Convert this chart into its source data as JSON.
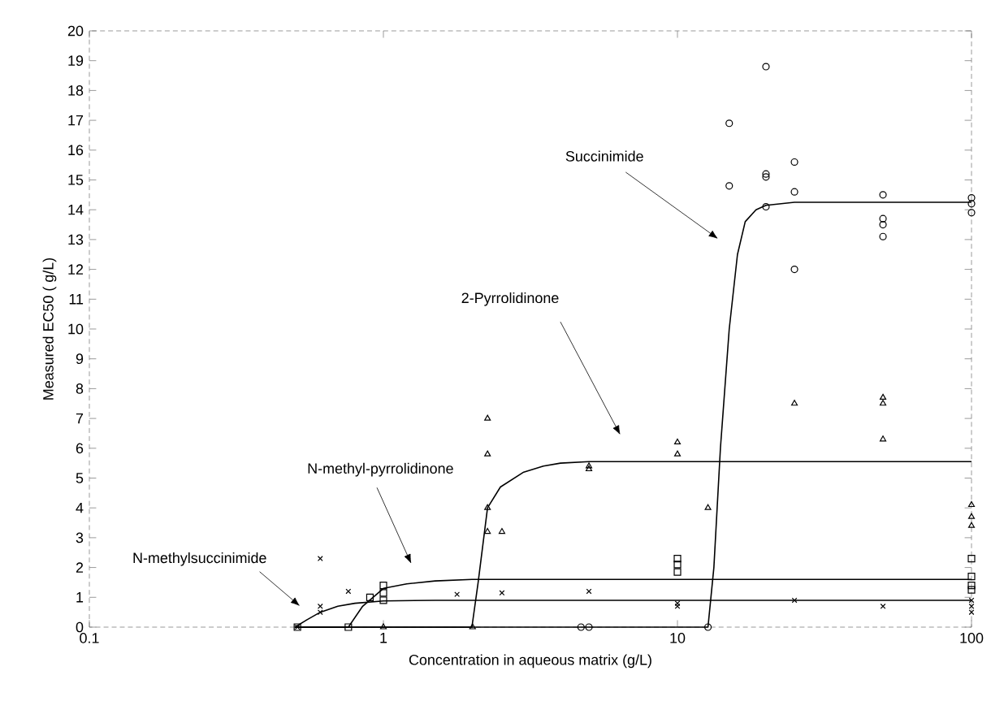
{
  "chart_data": {
    "type": "scatter",
    "xlabel": "Concentration in aqueous matrix (g/L)",
    "ylabel": "Measured EC50 ( g/L)",
    "log": "x",
    "grid": false,
    "xlim": [
      0.1,
      100
    ],
    "xticks": [
      0.1,
      1,
      10,
      100
    ],
    "ylim": [
      0,
      20
    ],
    "yticks": [
      0,
      1,
      2,
      3,
      4,
      5,
      6,
      7,
      8,
      9,
      10,
      11,
      12,
      13,
      14,
      15,
      16,
      17,
      18,
      19,
      20
    ],
    "series": [
      {
        "marker": "circle",
        "color": "#000000",
        "x": [
          4.7,
          5.0,
          12.7,
          15,
          15,
          20,
          20,
          20,
          20,
          25,
          25,
          25,
          50,
          50,
          50,
          50,
          100,
          100,
          100
        ],
        "values": [
          0,
          0,
          0,
          16.9,
          14.8,
          18.8,
          15.2,
          15.1,
          14.1,
          15.6,
          14.6,
          12.0,
          14.5,
          13.7,
          13.5,
          13.1,
          14.4,
          14.2,
          13.9
        ]
      },
      {
        "marker": "triangle",
        "color": "#000000",
        "x": [
          1,
          2.01,
          2.26,
          2.26,
          2.26,
          2.26,
          2.53,
          5,
          5,
          10,
          10,
          12.7,
          25,
          50,
          50,
          50,
          100,
          100,
          100
        ],
        "values": [
          0,
          0,
          7.0,
          5.8,
          4.0,
          3.2,
          3.2,
          5.4,
          5.3,
          6.2,
          5.8,
          4.0,
          7.5,
          7.7,
          7.5,
          6.3,
          4.1,
          3.7,
          3.4
        ]
      },
      {
        "marker": "square",
        "color": "#000000",
        "x": [
          0.51,
          0.76,
          0.9,
          1,
          1,
          1,
          10,
          10,
          10,
          100,
          100,
          100,
          100
        ],
        "values": [
          0,
          0,
          1.0,
          1.4,
          1.15,
          0.9,
          2.3,
          2.1,
          1.85,
          2.3,
          1.7,
          1.4,
          1.25
        ]
      },
      {
        "marker": "cross",
        "color": "#000000",
        "x": [
          0.51,
          0.61,
          0.61,
          0.61,
          0.76,
          1.78,
          2.53,
          5,
          10,
          10,
          25,
          50,
          100,
          100,
          100
        ],
        "values": [
          0,
          2.3,
          0.7,
          0.5,
          1.2,
          1.1,
          1.15,
          1.2,
          0.7,
          0.8,
          0.9,
          0.7,
          0.9,
          0.7,
          0.5
        ]
      },
      {
        "type": "line",
        "marker": "none",
        "color": "#000000",
        "x": [
          0.5,
          12.7,
          13.3,
          14,
          15,
          16,
          17,
          18.5,
          20,
          25,
          100
        ],
        "values": [
          0,
          0,
          2,
          6,
          10,
          12.5,
          13.6,
          14.0,
          14.15,
          14.25,
          14.25
        ]
      },
      {
        "type": "line",
        "marker": "none",
        "color": "#000000",
        "x": [
          0.5,
          2.0,
          2.1,
          2.26,
          2.5,
          3,
          3.5,
          4,
          5,
          100
        ],
        "values": [
          0,
          0,
          1.5,
          4.0,
          4.7,
          5.2,
          5.4,
          5.5,
          5.55,
          5.55
        ]
      },
      {
        "type": "line",
        "marker": "none",
        "color": "#000000",
        "x": [
          0.5,
          0.76,
          0.85,
          1,
          1.2,
          1.5,
          2,
          3,
          100
        ],
        "values": [
          0,
          0,
          0.7,
          1.3,
          1.45,
          1.55,
          1.6,
          1.6,
          1.6
        ]
      },
      {
        "type": "line",
        "marker": "none",
        "color": "#000000",
        "x": [
          0.5,
          0.55,
          0.61,
          0.7,
          0.8,
          1,
          1.5,
          100
        ],
        "values": [
          0,
          0.25,
          0.5,
          0.7,
          0.8,
          0.88,
          0.9,
          0.9
        ]
      }
    ],
    "annotations": [
      "Succinimide",
      "2-Pyrrolidinone",
      "N-methyl-pyrrolidinone",
      "N-methylsuccinimide"
    ]
  }
}
